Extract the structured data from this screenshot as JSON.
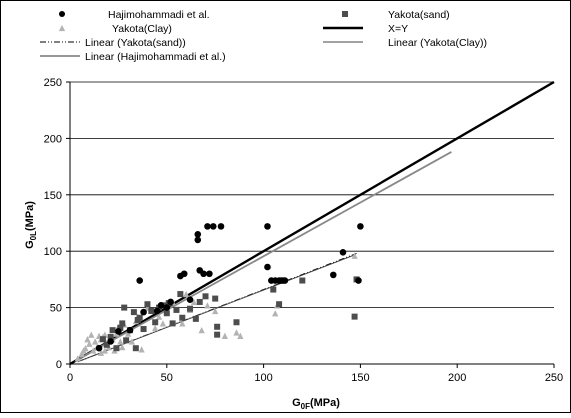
{
  "chart_data": {
    "type": "scatter",
    "xlabel_main": "G",
    "xlabel_sub": "0F",
    "xlabel_unit": "(MPa)",
    "ylabel_main": "G",
    "ylabel_sub": "0L",
    "ylabel_unit": "(MPa)",
    "xlim": [
      0,
      250
    ],
    "ylim": [
      0,
      250
    ],
    "x_ticks": [
      "0",
      "50",
      "100",
      "150",
      "200",
      "250"
    ],
    "y_ticks": [
      "0",
      "50",
      "100",
      "150",
      "200",
      "250"
    ],
    "grid": "horizontal",
    "legend_position": "top",
    "legend": [
      {
        "label": "Hajimohammadi et al.",
        "marker": "circle",
        "color": "#000000"
      },
      {
        "label": "Yakota(sand)",
        "marker": "square",
        "color": "#4d4d4d"
      },
      {
        "label": "Yakota(Clay)",
        "marker": "triangle",
        "color": "#b3b3b3"
      },
      {
        "label": "X=Y",
        "line": "solid-thick",
        "color": "#000000"
      },
      {
        "label": "Linear (Yakota(sand))",
        "line": "dash-dot",
        "color": "#000000"
      },
      {
        "label": "Linear (Yakota(Clay))",
        "line": "solid-thin",
        "color": "#555555"
      },
      {
        "label": "Linear (Hajimohammadi et al.)",
        "line": "solid-thin",
        "color": "#888888"
      }
    ],
    "series": [
      {
        "name": "Hajimohammadi et al.",
        "marker": "circle",
        "color": "#000000",
        "points": [
          [
            15,
            14
          ],
          [
            21,
            20
          ],
          [
            25,
            29
          ],
          [
            31,
            30
          ],
          [
            36,
            74
          ],
          [
            38,
            46
          ],
          [
            45,
            47
          ],
          [
            47,
            52
          ],
          [
            50,
            50
          ],
          [
            52,
            55
          ],
          [
            57,
            78
          ],
          [
            59,
            80
          ],
          [
            62,
            57
          ],
          [
            66,
            115
          ],
          [
            66,
            110
          ],
          [
            67,
            83
          ],
          [
            69,
            80
          ],
          [
            71,
            122
          ],
          [
            72,
            80
          ],
          [
            74,
            122
          ],
          [
            78,
            122
          ],
          [
            102,
            122
          ],
          [
            102,
            86
          ],
          [
            104,
            74
          ],
          [
            106,
            74
          ],
          [
            108,
            74
          ],
          [
            109,
            74
          ],
          [
            110,
            74
          ],
          [
            111,
            74
          ],
          [
            136,
            79
          ],
          [
            141,
            99
          ],
          [
            150,
            122
          ],
          [
            149,
            74
          ]
        ]
      },
      {
        "name": "Yakota(sand)",
        "marker": "square",
        "color": "#4d4d4d",
        "points": [
          [
            17,
            22
          ],
          [
            19,
            17
          ],
          [
            21,
            24
          ],
          [
            22,
            30
          ],
          [
            24,
            14
          ],
          [
            26,
            32
          ],
          [
            27,
            36
          ],
          [
            28,
            50
          ],
          [
            29,
            21
          ],
          [
            31,
            30
          ],
          [
            33,
            46
          ],
          [
            34,
            14
          ],
          [
            35,
            39
          ],
          [
            36,
            41
          ],
          [
            38,
            31
          ],
          [
            40,
            53
          ],
          [
            42,
            47
          ],
          [
            44,
            37
          ],
          [
            46,
            50
          ],
          [
            48,
            52
          ],
          [
            50,
            45
          ],
          [
            51,
            54
          ],
          [
            53,
            36
          ],
          [
            55,
            48
          ],
          [
            57,
            62
          ],
          [
            58,
            41
          ],
          [
            62,
            49
          ],
          [
            65,
            40
          ],
          [
            67,
            55
          ],
          [
            70,
            60
          ],
          [
            75,
            58
          ],
          [
            76,
            33
          ],
          [
            76,
            26
          ],
          [
            86,
            37
          ],
          [
            105,
            66
          ],
          [
            108,
            53
          ],
          [
            120,
            74
          ],
          [
            148,
            75
          ],
          [
            147,
            42
          ]
        ]
      },
      {
        "name": "Yakota(Clay)",
        "marker": "triangle",
        "color": "#b3b3b3",
        "points": [
          [
            4,
            5
          ],
          [
            6,
            9
          ],
          [
            7,
            12
          ],
          [
            8,
            14
          ],
          [
            9,
            22
          ],
          [
            10,
            18
          ],
          [
            11,
            26
          ],
          [
            12,
            12
          ],
          [
            13,
            20
          ],
          [
            14,
            15
          ],
          [
            15,
            25
          ],
          [
            16,
            10
          ],
          [
            16,
            22
          ],
          [
            17,
            24
          ],
          [
            18,
            12
          ],
          [
            18,
            26
          ],
          [
            19,
            19
          ],
          [
            20,
            15
          ],
          [
            21,
            24
          ],
          [
            22,
            22
          ],
          [
            23,
            12
          ],
          [
            24,
            27
          ],
          [
            25,
            33
          ],
          [
            26,
            20
          ],
          [
            27,
            15
          ],
          [
            28,
            35
          ],
          [
            30,
            27
          ],
          [
            32,
            20
          ],
          [
            34,
            38
          ],
          [
            35,
            42
          ],
          [
            37,
            13
          ],
          [
            40,
            50
          ],
          [
            44,
            32
          ],
          [
            46,
            42
          ],
          [
            48,
            36
          ],
          [
            53,
            55
          ],
          [
            55,
            48
          ],
          [
            58,
            36
          ],
          [
            60,
            62
          ],
          [
            62,
            48
          ],
          [
            64,
            55
          ],
          [
            68,
            30
          ],
          [
            71,
            52
          ],
          [
            75,
            47
          ],
          [
            80,
            25
          ],
          [
            86,
            28
          ],
          [
            88,
            25
          ],
          [
            106,
            45
          ],
          [
            107,
            52
          ],
          [
            147,
            96
          ]
        ]
      }
    ],
    "lines": [
      {
        "name": "X=Y",
        "x": [
          0,
          250
        ],
        "y": [
          0,
          250
        ]
      },
      {
        "name": "Linear (Yakota(sand))",
        "x": [
          4,
          148
        ],
        "y": [
          2,
          98
        ]
      },
      {
        "name": "Linear (Yakota(Clay))",
        "x": [
          4,
          146
        ],
        "y": [
          2,
          96
        ]
      },
      {
        "name": "Linear (Hajimohammadi et al.)",
        "x": [
          4,
          197
        ],
        "y": [
          4,
          188
        ]
      }
    ]
  }
}
